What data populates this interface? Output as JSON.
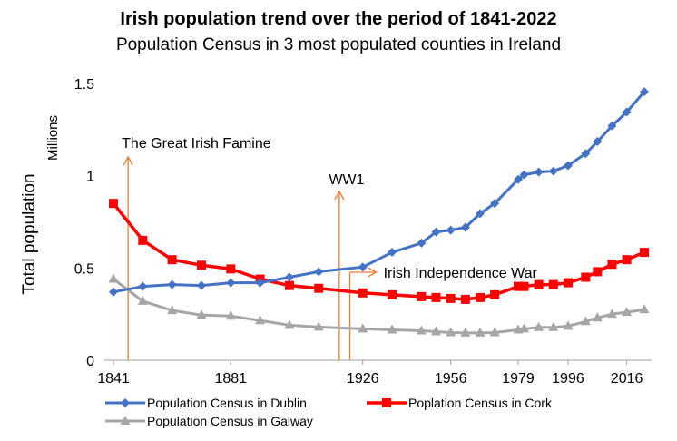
{
  "chart_data": {
    "type": "line",
    "title": "Irish population trend over the period of 1841-2022",
    "subtitle": "Population  Census in 3 most populated  counties in Ireland",
    "ylabel": "Total population",
    "yunit": "Millions",
    "xlabel": "",
    "ylim": [
      0,
      1.5
    ],
    "yticks": [
      0,
      0.5,
      1,
      1.5
    ],
    "ytick_labels": [
      "0",
      "0.5",
      "1",
      "1.5"
    ],
    "xlim": [
      1841,
      2022
    ],
    "xticks": [
      1841,
      1881,
      1926,
      1956,
      1979,
      1996,
      2016
    ],
    "xtick_labels": [
      "1841",
      "1881",
      "1926",
      "1956",
      "1979",
      "1996",
      "2016"
    ],
    "grid": false,
    "legend_position": "bottom",
    "x": [
      1841,
      1851,
      1861,
      1871,
      1881,
      1891,
      1901,
      1911,
      1926,
      1936,
      1946,
      1951,
      1956,
      1961,
      1966,
      1971,
      1979,
      1981,
      1986,
      1991,
      1996,
      2002,
      2006,
      2011,
      2016,
      2022
    ],
    "series": [
      {
        "name": "Population Census  in Dublin",
        "color": "#4472c4",
        "marker": "diamond",
        "values": [
          0.37,
          0.4,
          0.41,
          0.405,
          0.42,
          0.42,
          0.45,
          0.48,
          0.505,
          0.585,
          0.635,
          0.695,
          0.705,
          0.72,
          0.795,
          0.85,
          0.98,
          1.005,
          1.02,
          1.025,
          1.055,
          1.12,
          1.185,
          1.27,
          1.345,
          1.455
        ]
      },
      {
        "name": "Poplation Census in Cork",
        "color": "#ff0000",
        "marker": "square",
        "values": [
          0.85,
          0.65,
          0.545,
          0.515,
          0.495,
          0.44,
          0.405,
          0.39,
          0.365,
          0.355,
          0.345,
          0.34,
          0.335,
          0.33,
          0.34,
          0.355,
          0.4,
          0.4,
          0.41,
          0.41,
          0.42,
          0.45,
          0.48,
          0.52,
          0.545,
          0.585
        ]
      },
      {
        "name": "Population Census in Galway",
        "color": "#a6a6a6",
        "marker": "triangle",
        "values": [
          0.44,
          0.32,
          0.27,
          0.245,
          0.24,
          0.215,
          0.19,
          0.18,
          0.17,
          0.165,
          0.16,
          0.155,
          0.15,
          0.148,
          0.148,
          0.15,
          0.165,
          0.17,
          0.178,
          0.178,
          0.185,
          0.21,
          0.23,
          0.25,
          0.26,
          0.275
        ]
      }
    ],
    "annotations": [
      {
        "text": "The Great Irish Famine",
        "x": 1846,
        "direction": "up"
      },
      {
        "text": "WW1",
        "x": 1918,
        "direction": "up"
      },
      {
        "text": "Irish Independence War",
        "x": 1921,
        "direction": "right"
      }
    ],
    "annotation_color": "#ed7d31"
  }
}
